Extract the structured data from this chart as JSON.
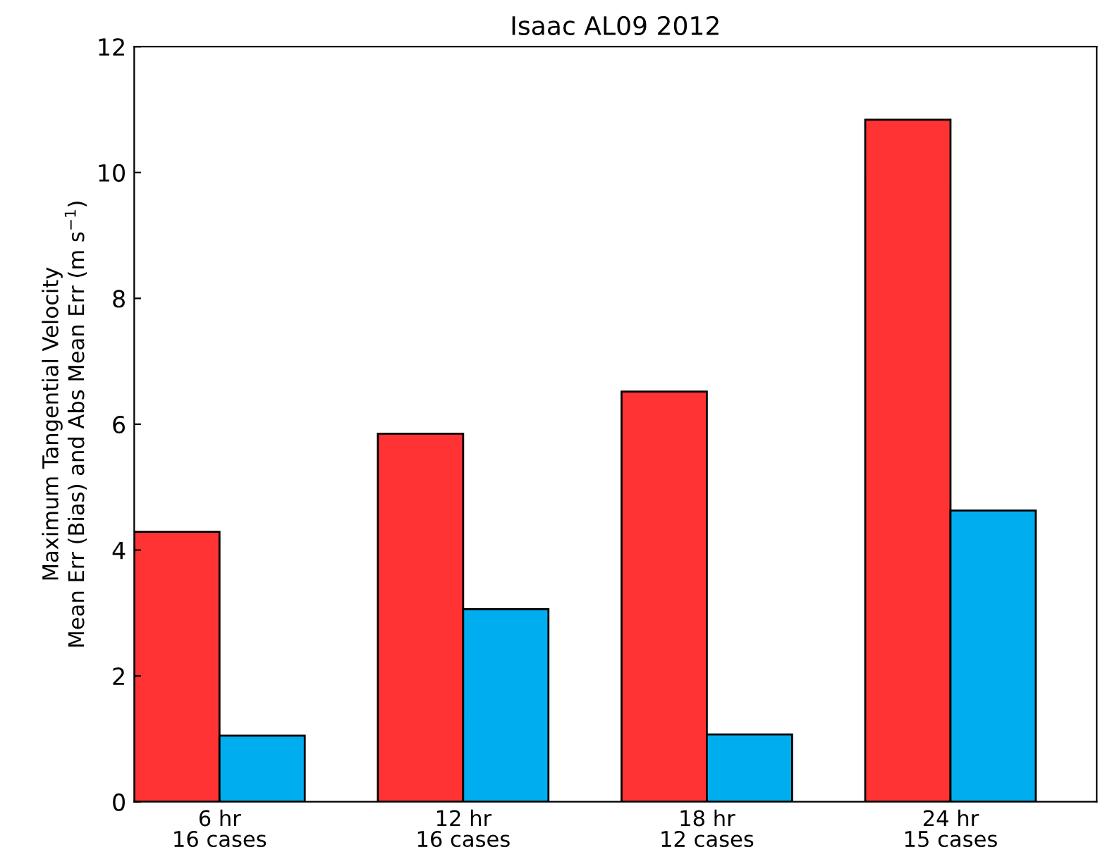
{
  "chart_data": {
    "type": "bar",
    "title": "Isaac AL09 2012",
    "ylabel": "Maximum Tangential Velocity\nMean Err (Bias) and Abs Mean Err (m s$^{−1}$)",
    "categories": [
      "6 hr\n16 cases",
      "12 hr\n16 cases",
      "18 hr\n12 cases",
      "24 hr\n15 cases"
    ],
    "series": [
      {
        "color": "#ff3333",
        "values": [
          4.29,
          5.85,
          6.52,
          10.84
        ]
      },
      {
        "color": "#00aeef",
        "values": [
          1.05,
          3.06,
          1.07,
          4.63
        ]
      }
    ],
    "ylim": [
      0,
      12
    ],
    "yticks": [
      0,
      2,
      4,
      6,
      8,
      10,
      12
    ]
  }
}
